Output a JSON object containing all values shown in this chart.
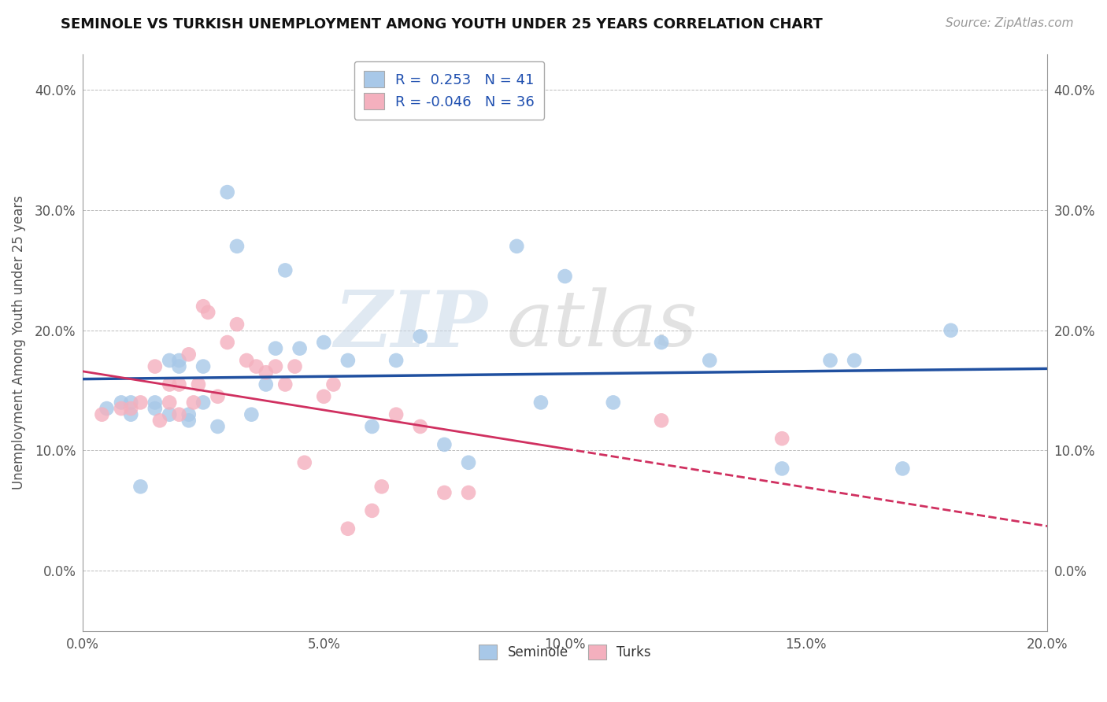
{
  "title": "SEMINOLE VS TURKISH UNEMPLOYMENT AMONG YOUTH UNDER 25 YEARS CORRELATION CHART",
  "source": "Source: ZipAtlas.com",
  "ylabel": "Unemployment Among Youth under 25 years",
  "xlabel": "",
  "xlim": [
    0.0,
    0.2
  ],
  "ylim": [
    -0.05,
    0.43
  ],
  "xticks": [
    0.0,
    0.05,
    0.1,
    0.15,
    0.2
  ],
  "xtick_labels": [
    "0.0%",
    "5.0%",
    "10.0%",
    "15.0%",
    "20.0%"
  ],
  "yticks": [
    0.0,
    0.1,
    0.2,
    0.3,
    0.4
  ],
  "ytick_labels": [
    "0.0%",
    "10.0%",
    "20.0%",
    "30.0%",
    "40.0%"
  ],
  "seminole_color": "#a8c8e8",
  "turks_color": "#f4b0be",
  "trendline_seminole_color": "#2050a0",
  "trendline_turks_color": "#d03060",
  "seminole_R": 0.253,
  "seminole_N": 41,
  "turks_R": -0.046,
  "turks_N": 36,
  "watermark_zip": "ZIP",
  "watermark_atlas": "atlas",
  "watermark_color_zip": "#c8d8e8",
  "watermark_color_atlas": "#c0c0c0",
  "seminole_x": [
    0.005,
    0.008,
    0.01,
    0.01,
    0.012,
    0.015,
    0.015,
    0.018,
    0.018,
    0.02,
    0.02,
    0.022,
    0.022,
    0.025,
    0.025,
    0.028,
    0.03,
    0.032,
    0.035,
    0.038,
    0.04,
    0.042,
    0.045,
    0.05,
    0.055,
    0.06,
    0.065,
    0.07,
    0.075,
    0.08,
    0.09,
    0.095,
    0.1,
    0.11,
    0.12,
    0.13,
    0.145,
    0.155,
    0.16,
    0.17,
    0.18
  ],
  "seminole_y": [
    0.135,
    0.14,
    0.13,
    0.14,
    0.07,
    0.135,
    0.14,
    0.13,
    0.175,
    0.175,
    0.17,
    0.125,
    0.13,
    0.17,
    0.14,
    0.12,
    0.315,
    0.27,
    0.13,
    0.155,
    0.185,
    0.25,
    0.185,
    0.19,
    0.175,
    0.12,
    0.175,
    0.195,
    0.105,
    0.09,
    0.27,
    0.14,
    0.245,
    0.14,
    0.19,
    0.175,
    0.085,
    0.175,
    0.175,
    0.085,
    0.2
  ],
  "turks_x": [
    0.004,
    0.008,
    0.01,
    0.012,
    0.015,
    0.016,
    0.018,
    0.018,
    0.02,
    0.02,
    0.022,
    0.023,
    0.024,
    0.025,
    0.026,
    0.028,
    0.03,
    0.032,
    0.034,
    0.036,
    0.038,
    0.04,
    0.042,
    0.044,
    0.046,
    0.05,
    0.052,
    0.055,
    0.06,
    0.062,
    0.065,
    0.07,
    0.075,
    0.08,
    0.12,
    0.145
  ],
  "turks_y": [
    0.13,
    0.135,
    0.135,
    0.14,
    0.17,
    0.125,
    0.14,
    0.155,
    0.13,
    0.155,
    0.18,
    0.14,
    0.155,
    0.22,
    0.215,
    0.145,
    0.19,
    0.205,
    0.175,
    0.17,
    0.165,
    0.17,
    0.155,
    0.17,
    0.09,
    0.145,
    0.155,
    0.035,
    0.05,
    0.07,
    0.13,
    0.12,
    0.065,
    0.065,
    0.125,
    0.11
  ],
  "trendline_turks_solid_end": 0.1,
  "background_color": "#ffffff",
  "grid_color": "#bbbbbb",
  "grid_linestyle": "--",
  "axis_label_color": "#555555",
  "title_color": "#111111",
  "source_color": "#999999",
  "legend_text_color": "#2050b0",
  "legend_edge_color": "#aaaaaa",
  "spine_color": "#999999"
}
